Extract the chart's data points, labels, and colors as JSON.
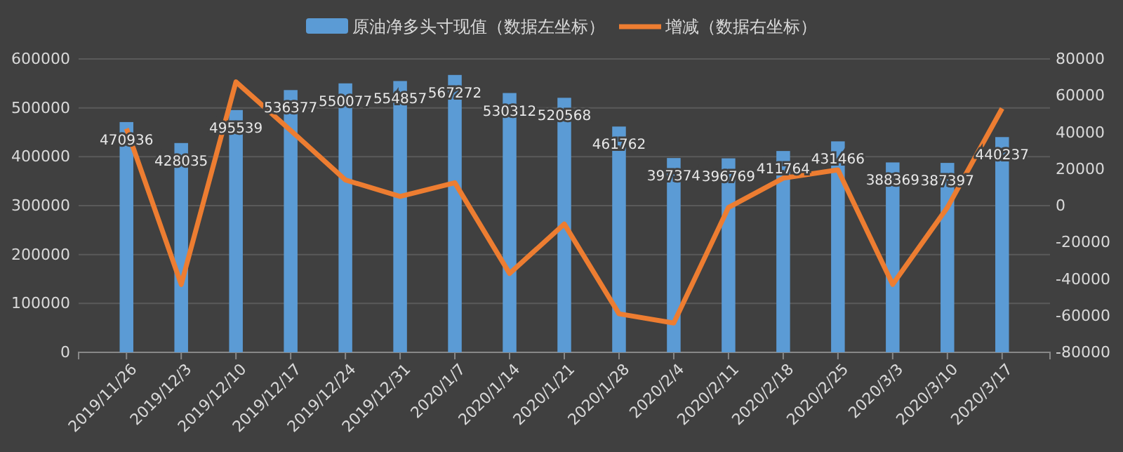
{
  "chart_data": {
    "type": "bar",
    "categories": [
      "2019/11/26",
      "2019/12/3",
      "2019/12/10",
      "2019/12/17",
      "2019/12/24",
      "2019/12/31",
      "2020/1/7",
      "2020/1/14",
      "2020/1/21",
      "2020/1/28",
      "2020/2/4",
      "2020/2/11",
      "2020/2/18",
      "2020/2/25",
      "2020/3/3",
      "2020/3/10",
      "2020/3/17"
    ],
    "series": [
      {
        "name": "原油净多头寸现值（数据左坐标）",
        "color": "#5b9bd5",
        "values": [
          470936,
          428035,
          495539,
          536377,
          550077,
          554857,
          567272,
          530312,
          520568,
          461762,
          397374,
          396769,
          411764,
          431466,
          388369,
          387397,
          440237
        ],
        "value_labels": [
          "470936",
          "428035",
          "495539",
          "536377",
          "550077",
          "554857",
          "567272",
          "530312",
          "520568",
          "461762",
          "397374",
          "396769",
          "411764",
          "431466",
          "388369",
          "387397",
          "440237"
        ]
      },
      {
        "name": "增减（数据右坐标）",
        "type": "line",
        "axis": "y2",
        "color": "#ed7d31",
        "values": [
          42000,
          -43000,
          67500,
          41000,
          14000,
          5000,
          12500,
          -37000,
          -10000,
          -59000,
          -64000,
          -1000,
          15000,
          19500,
          -43000,
          -1000,
          53000
        ]
      }
    ],
    "ylim": [
      0,
      600000
    ],
    "yticks": [
      0,
      100000,
      200000,
      300000,
      400000,
      500000,
      600000
    ],
    "y2lim": [
      -80000,
      80000
    ],
    "y2ticks": [
      -80000,
      -60000,
      -40000,
      -20000,
      0,
      20000,
      40000,
      60000,
      80000
    ],
    "grid": "y",
    "legend": "top",
    "line_style": "solid",
    "marker": "none"
  }
}
